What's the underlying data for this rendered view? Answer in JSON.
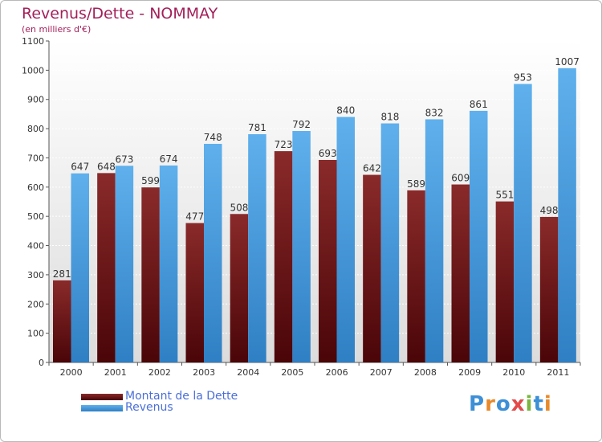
{
  "title": "Revenus/Dette - NOMMAY",
  "subtitle": "(en milliers d'€)",
  "colors": {
    "debt": "#6b1418",
    "revenue": "#4aa0e2",
    "title": "#a3205a",
    "legend_text": "#4a6fd8"
  },
  "legend": [
    {
      "label": "Montant de la Dette",
      "color": "#6b1418"
    },
    {
      "label": "Revenus",
      "color": "#4aa0e2"
    }
  ],
  "logo": {
    "text": "Proxiti",
    "letter_colors": [
      "#3d8fd6",
      "#e8892b",
      "#3d8fd6",
      "#e34a4a",
      "#7ab540",
      "#3d8fd6",
      "#e8892b"
    ]
  },
  "chart_data": {
    "type": "bar",
    "categories": [
      "2000",
      "2001",
      "2002",
      "2003",
      "2004",
      "2005",
      "2006",
      "2007",
      "2008",
      "2009",
      "2010",
      "2011"
    ],
    "series": [
      {
        "name": "Montant de la Dette",
        "values": [
          281,
          648,
          599,
          477,
          508,
          723,
          693,
          642,
          589,
          609,
          551,
          498
        ]
      },
      {
        "name": "Revenus",
        "values": [
          647,
          673,
          674,
          748,
          781,
          792,
          840,
          818,
          832,
          861,
          953,
          1007
        ]
      }
    ],
    "ylim": [
      0,
      1100
    ],
    "yticks": [
      "0",
      "100",
      "200",
      "300",
      "400",
      "500",
      "600",
      "700",
      "800",
      "900",
      "1000",
      "1100"
    ],
    "grid": true,
    "legend_position": "bottom-left"
  }
}
